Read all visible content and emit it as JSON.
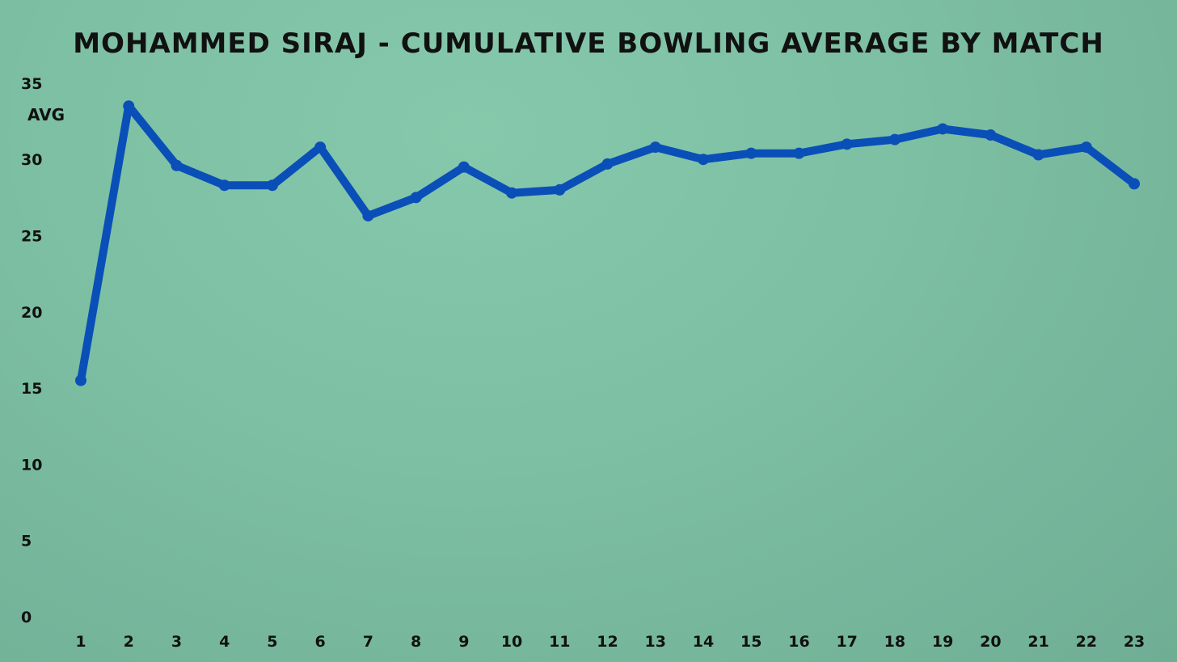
{
  "chart_data": {
    "type": "line",
    "title": "MOHAMMED SIRAJ - CUMULATIVE BOWLING AVERAGE BY MATCH",
    "xlabel": "",
    "ylabel": "AVG",
    "categories": [
      "1",
      "2",
      "3",
      "4",
      "5",
      "6",
      "7",
      "8",
      "9",
      "10",
      "11",
      "12",
      "13",
      "14",
      "15",
      "16",
      "17",
      "18",
      "19",
      "20",
      "21",
      "22",
      "23"
    ],
    "series": [
      {
        "values": [
          15.5,
          33.5,
          29.6,
          28.3,
          28.3,
          30.8,
          26.3,
          27.5,
          29.5,
          27.8,
          28.0,
          29.7,
          30.8,
          30.0,
          30.4,
          30.4,
          31.0,
          31.3,
          32.0,
          31.6,
          30.3,
          30.8,
          28.4
        ]
      }
    ],
    "ylim": [
      0,
      35
    ],
    "yticks": [
      "0",
      "5",
      "10",
      "15",
      "20",
      "25",
      "30",
      "35"
    ],
    "grid": false,
    "line_color": "#0a4fb8",
    "text_color": "#111111"
  }
}
